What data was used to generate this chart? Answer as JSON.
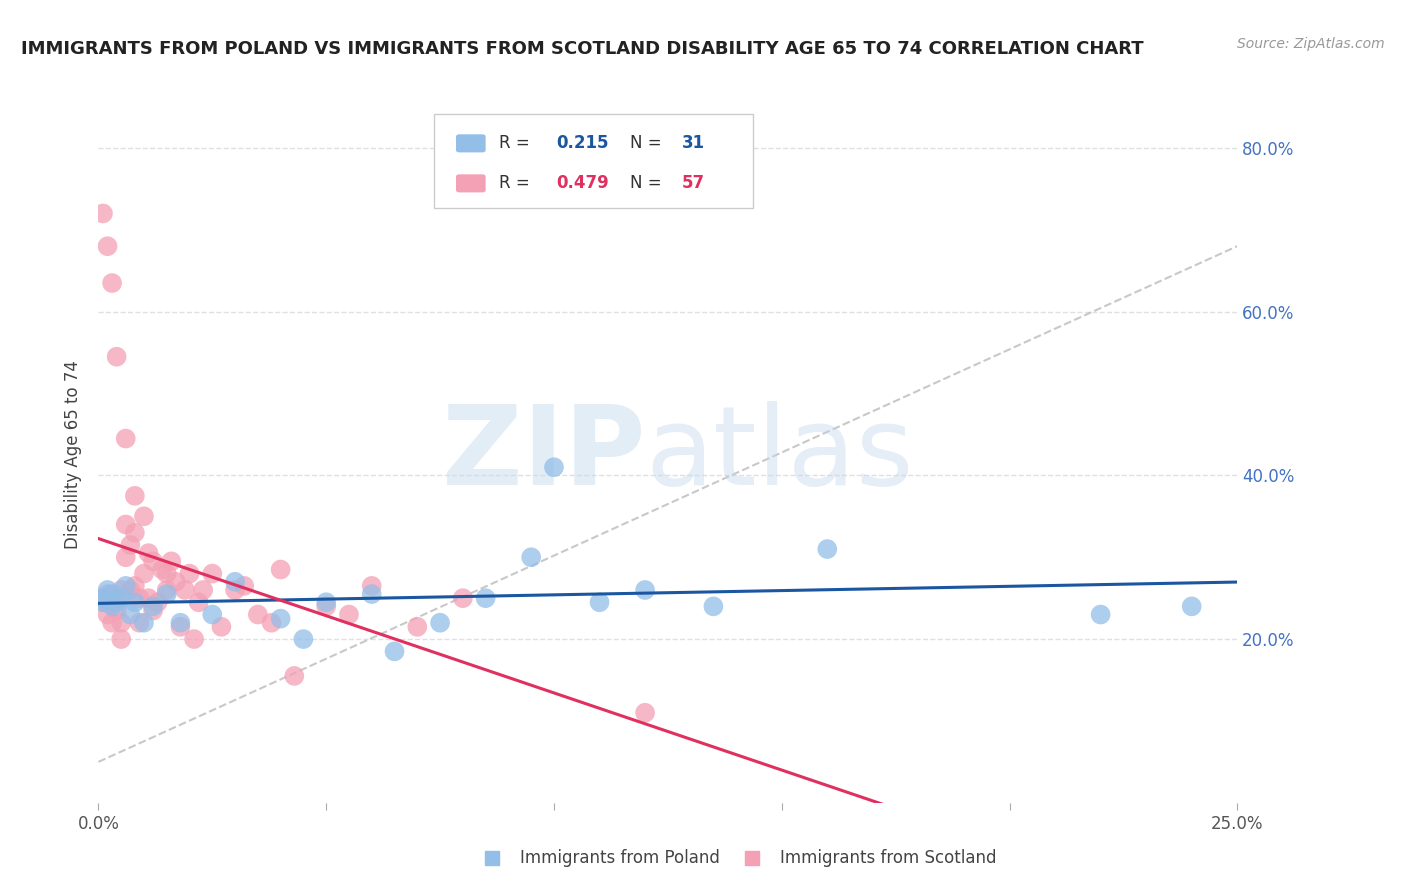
{
  "title": "IMMIGRANTS FROM POLAND VS IMMIGRANTS FROM SCOTLAND DISABILITY AGE 65 TO 74 CORRELATION CHART",
  "source": "Source: ZipAtlas.com",
  "ylabel": "Disability Age 65 to 74",
  "xlim": [
    0.0,
    0.25
  ],
  "ylim": [
    0.0,
    0.85
  ],
  "y_ticks": [
    0.2,
    0.4,
    0.6,
    0.8
  ],
  "poland_color": "#92BEE8",
  "scotland_color": "#F4A0B5",
  "poland_line_color": "#1A57A0",
  "scotland_line_color": "#E03060",
  "poland_R": 0.215,
  "poland_N": 31,
  "scotland_R": 0.479,
  "scotland_N": 57,
  "background_color": "#FFFFFF",
  "grid_color": "#E0E0E0",
  "poland_x": [
    0.001,
    0.001,
    0.002,
    0.003,
    0.003,
    0.004,
    0.005,
    0.006,
    0.007,
    0.008,
    0.01,
    0.012,
    0.015,
    0.018,
    0.025,
    0.03,
    0.04,
    0.045,
    0.05,
    0.06,
    0.065,
    0.075,
    0.085,
    0.095,
    0.1,
    0.11,
    0.12,
    0.135,
    0.16,
    0.22,
    0.24
  ],
  "poland_y": [
    0.245,
    0.25,
    0.26,
    0.24,
    0.255,
    0.245,
    0.25,
    0.265,
    0.23,
    0.245,
    0.22,
    0.24,
    0.255,
    0.22,
    0.23,
    0.27,
    0.225,
    0.2,
    0.245,
    0.255,
    0.185,
    0.22,
    0.25,
    0.3,
    0.41,
    0.245,
    0.26,
    0.24,
    0.31,
    0.23,
    0.24
  ],
  "scotland_x": [
    0.001,
    0.001,
    0.002,
    0.002,
    0.003,
    0.003,
    0.004,
    0.004,
    0.005,
    0.005,
    0.005,
    0.006,
    0.006,
    0.007,
    0.007,
    0.008,
    0.008,
    0.009,
    0.009,
    0.01,
    0.01,
    0.011,
    0.011,
    0.012,
    0.012,
    0.013,
    0.014,
    0.015,
    0.015,
    0.016,
    0.017,
    0.018,
    0.019,
    0.02,
    0.021,
    0.022,
    0.023,
    0.025,
    0.027,
    0.03,
    0.032,
    0.035,
    0.038,
    0.04,
    0.043,
    0.05,
    0.055,
    0.06,
    0.07,
    0.08,
    0.001,
    0.002,
    0.003,
    0.004,
    0.006,
    0.008,
    0.12
  ],
  "scotland_y": [
    0.25,
    0.245,
    0.23,
    0.255,
    0.22,
    0.245,
    0.235,
    0.25,
    0.2,
    0.22,
    0.26,
    0.34,
    0.3,
    0.26,
    0.315,
    0.265,
    0.33,
    0.22,
    0.25,
    0.28,
    0.35,
    0.25,
    0.305,
    0.235,
    0.295,
    0.245,
    0.285,
    0.28,
    0.26,
    0.295,
    0.27,
    0.215,
    0.26,
    0.28,
    0.2,
    0.245,
    0.26,
    0.28,
    0.215,
    0.26,
    0.265,
    0.23,
    0.22,
    0.285,
    0.155,
    0.24,
    0.23,
    0.265,
    0.215,
    0.25,
    0.72,
    0.68,
    0.635,
    0.545,
    0.445,
    0.375,
    0.11
  ],
  "dash_line_x": [
    0.0,
    0.25
  ],
  "dash_line_y": [
    0.05,
    0.68
  ]
}
